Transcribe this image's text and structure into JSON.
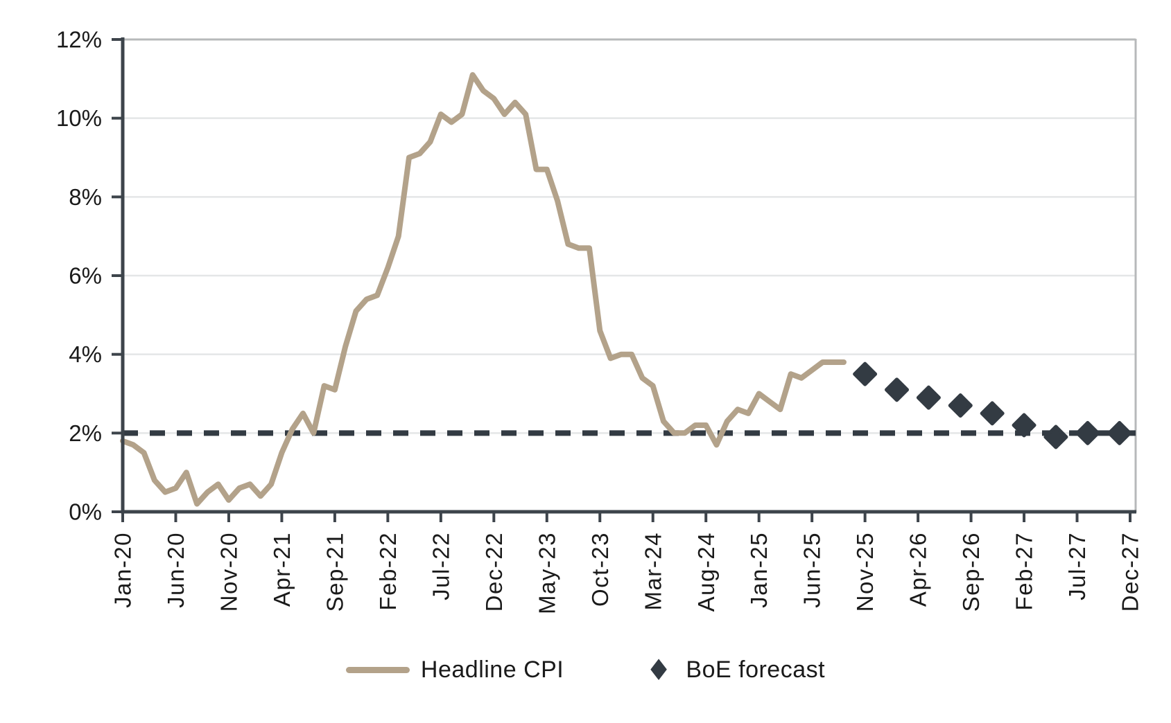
{
  "chart_data": {
    "type": "line",
    "title": "",
    "xlabel": "",
    "ylabel": "",
    "y_axis": {
      "lim": [
        0,
        12
      ],
      "tick_values": [
        0,
        2,
        4,
        6,
        8,
        10,
        12
      ],
      "tick_labels": [
        "0%",
        "2%",
        "4%",
        "6%",
        "8%",
        "10%",
        "12%"
      ],
      "grid": true
    },
    "x_axis": {
      "start": "Jan-20",
      "end": "Dec-27",
      "tick_month_step": 5,
      "tick_labels": [
        "Jan-20",
        "Jun-20",
        "Nov-20",
        "Apr-21",
        "Sep-21",
        "Feb-22",
        "Jul-22",
        "Dec-22",
        "May-23",
        "Oct-23",
        "Mar-24",
        "Aug-24",
        "Jan-25",
        "Jun-25",
        "Nov-25",
        "Apr-26",
        "Sep-26",
        "Feb-27",
        "Jul-27",
        "Dec-27"
      ]
    },
    "target_line": {
      "value": 2,
      "style": "dashed"
    },
    "series": [
      {
        "name": "Headline CPI",
        "type": "line",
        "start_month": "Jan-20",
        "values": [
          1.8,
          1.7,
          1.5,
          0.8,
          0.5,
          0.6,
          1.0,
          0.2,
          0.5,
          0.7,
          0.3,
          0.6,
          0.7,
          0.4,
          0.7,
          1.5,
          2.1,
          2.5,
          2.0,
          3.2,
          3.1,
          4.2,
          5.1,
          5.4,
          5.5,
          6.2,
          7.0,
          9.0,
          9.1,
          9.4,
          10.1,
          9.9,
          10.1,
          11.1,
          10.7,
          10.5,
          10.1,
          10.4,
          10.1,
          8.7,
          8.7,
          7.9,
          6.8,
          6.7,
          6.7,
          4.6,
          3.9,
          4.0,
          4.0,
          3.4,
          3.2,
          2.3,
          2.0,
          2.0,
          2.2,
          2.2,
          1.7,
          2.3,
          2.6,
          2.5,
          3.0,
          2.8,
          2.6,
          3.5,
          3.4,
          3.6,
          3.8,
          3.8,
          3.8
        ]
      },
      {
        "name": "BoE forecast",
        "type": "scatter",
        "marker": "diamond",
        "months": [
          "Nov-25",
          "Feb-26",
          "May-26",
          "Aug-26",
          "Nov-26",
          "Feb-27",
          "May-27",
          "Aug-27",
          "Nov-27"
        ],
        "values": [
          3.5,
          3.1,
          2.9,
          2.7,
          2.5,
          2.2,
          1.9,
          2.0,
          2.0
        ]
      }
    ],
    "legend": {
      "position": "bottom",
      "entries": [
        {
          "label": "Headline CPI",
          "marker": "line-swatch"
        },
        {
          "label": "BoE forecast",
          "marker": "diamond-icon"
        }
      ]
    }
  },
  "colors": {
    "cpi_line": "#b3a28a",
    "forecast": "#333b43",
    "axis": "#3d444b",
    "grid": "#e4e6e7",
    "border": "#b7b9ba",
    "text": "#1a1a1a",
    "background": "#ffffff"
  }
}
